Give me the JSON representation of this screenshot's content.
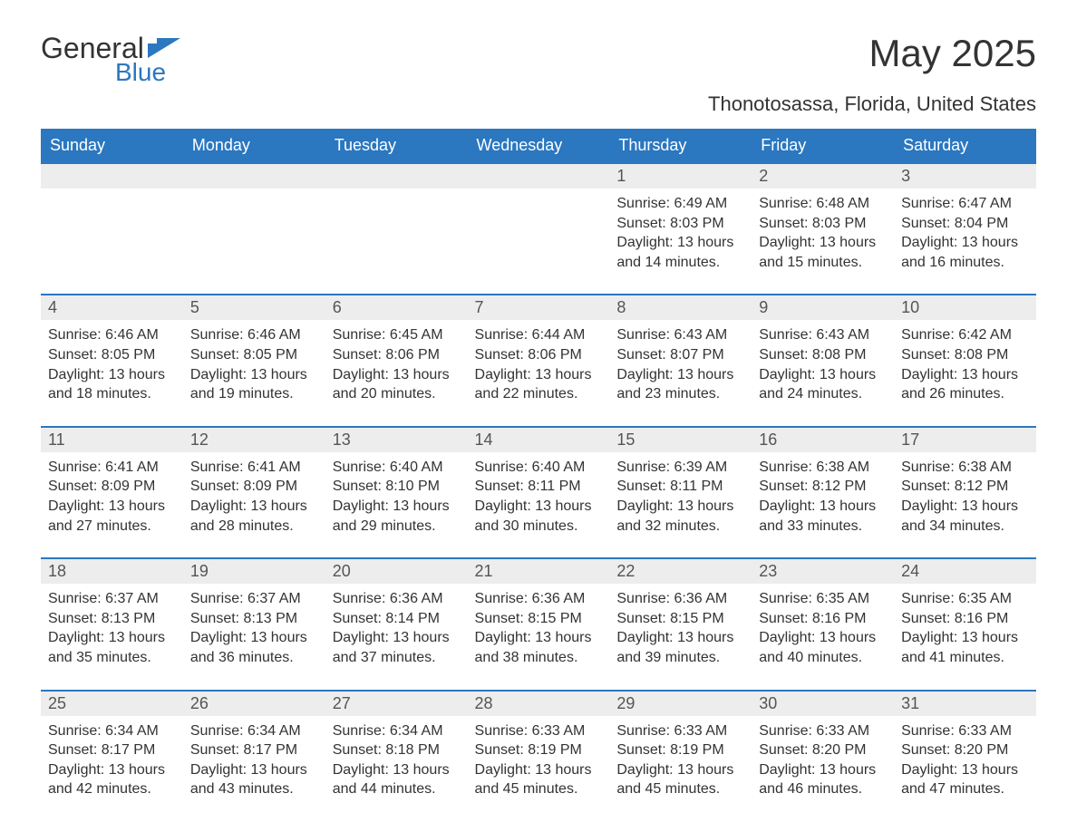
{
  "brand": {
    "name1": "General",
    "name2": "Blue"
  },
  "title": "May 2025",
  "subtitle": "Thonotosassa, Florida, United States",
  "colors": {
    "header_bg": "#2b77c0",
    "header_text": "#ffffff",
    "daynum_bg": "#ededed",
    "daynum_text": "#555555",
    "body_text": "#333333",
    "row_divider": "#2b77c0",
    "page_bg": "#ffffff",
    "logo_icon": "#2b77c0"
  },
  "typography": {
    "title_fontsize": 42,
    "subtitle_fontsize": 22,
    "header_fontsize": 18,
    "daynum_fontsize": 18,
    "body_fontsize": 16,
    "logo_fontsize": 32
  },
  "layout": {
    "columns": 7,
    "rows": 5,
    "leading_blanks": 4
  },
  "weekday_labels": [
    "Sunday",
    "Monday",
    "Tuesday",
    "Wednesday",
    "Thursday",
    "Friday",
    "Saturday"
  ],
  "days": [
    {
      "n": "1",
      "sunrise": "Sunrise: 6:49 AM",
      "sunset": "Sunset: 8:03 PM",
      "dl1": "Daylight: 13 hours",
      "dl2": "and 14 minutes."
    },
    {
      "n": "2",
      "sunrise": "Sunrise: 6:48 AM",
      "sunset": "Sunset: 8:03 PM",
      "dl1": "Daylight: 13 hours",
      "dl2": "and 15 minutes."
    },
    {
      "n": "3",
      "sunrise": "Sunrise: 6:47 AM",
      "sunset": "Sunset: 8:04 PM",
      "dl1": "Daylight: 13 hours",
      "dl2": "and 16 minutes."
    },
    {
      "n": "4",
      "sunrise": "Sunrise: 6:46 AM",
      "sunset": "Sunset: 8:05 PM",
      "dl1": "Daylight: 13 hours",
      "dl2": "and 18 minutes."
    },
    {
      "n": "5",
      "sunrise": "Sunrise: 6:46 AM",
      "sunset": "Sunset: 8:05 PM",
      "dl1": "Daylight: 13 hours",
      "dl2": "and 19 minutes."
    },
    {
      "n": "6",
      "sunrise": "Sunrise: 6:45 AM",
      "sunset": "Sunset: 8:06 PM",
      "dl1": "Daylight: 13 hours",
      "dl2": "and 20 minutes."
    },
    {
      "n": "7",
      "sunrise": "Sunrise: 6:44 AM",
      "sunset": "Sunset: 8:06 PM",
      "dl1": "Daylight: 13 hours",
      "dl2": "and 22 minutes."
    },
    {
      "n": "8",
      "sunrise": "Sunrise: 6:43 AM",
      "sunset": "Sunset: 8:07 PM",
      "dl1": "Daylight: 13 hours",
      "dl2": "and 23 minutes."
    },
    {
      "n": "9",
      "sunrise": "Sunrise: 6:43 AM",
      "sunset": "Sunset: 8:08 PM",
      "dl1": "Daylight: 13 hours",
      "dl2": "and 24 minutes."
    },
    {
      "n": "10",
      "sunrise": "Sunrise: 6:42 AM",
      "sunset": "Sunset: 8:08 PM",
      "dl1": "Daylight: 13 hours",
      "dl2": "and 26 minutes."
    },
    {
      "n": "11",
      "sunrise": "Sunrise: 6:41 AM",
      "sunset": "Sunset: 8:09 PM",
      "dl1": "Daylight: 13 hours",
      "dl2": "and 27 minutes."
    },
    {
      "n": "12",
      "sunrise": "Sunrise: 6:41 AM",
      "sunset": "Sunset: 8:09 PM",
      "dl1": "Daylight: 13 hours",
      "dl2": "and 28 minutes."
    },
    {
      "n": "13",
      "sunrise": "Sunrise: 6:40 AM",
      "sunset": "Sunset: 8:10 PM",
      "dl1": "Daylight: 13 hours",
      "dl2": "and 29 minutes."
    },
    {
      "n": "14",
      "sunrise": "Sunrise: 6:40 AM",
      "sunset": "Sunset: 8:11 PM",
      "dl1": "Daylight: 13 hours",
      "dl2": "and 30 minutes."
    },
    {
      "n": "15",
      "sunrise": "Sunrise: 6:39 AM",
      "sunset": "Sunset: 8:11 PM",
      "dl1": "Daylight: 13 hours",
      "dl2": "and 32 minutes."
    },
    {
      "n": "16",
      "sunrise": "Sunrise: 6:38 AM",
      "sunset": "Sunset: 8:12 PM",
      "dl1": "Daylight: 13 hours",
      "dl2": "and 33 minutes."
    },
    {
      "n": "17",
      "sunrise": "Sunrise: 6:38 AM",
      "sunset": "Sunset: 8:12 PM",
      "dl1": "Daylight: 13 hours",
      "dl2": "and 34 minutes."
    },
    {
      "n": "18",
      "sunrise": "Sunrise: 6:37 AM",
      "sunset": "Sunset: 8:13 PM",
      "dl1": "Daylight: 13 hours",
      "dl2": "and 35 minutes."
    },
    {
      "n": "19",
      "sunrise": "Sunrise: 6:37 AM",
      "sunset": "Sunset: 8:13 PM",
      "dl1": "Daylight: 13 hours",
      "dl2": "and 36 minutes."
    },
    {
      "n": "20",
      "sunrise": "Sunrise: 6:36 AM",
      "sunset": "Sunset: 8:14 PM",
      "dl1": "Daylight: 13 hours",
      "dl2": "and 37 minutes."
    },
    {
      "n": "21",
      "sunrise": "Sunrise: 6:36 AM",
      "sunset": "Sunset: 8:15 PM",
      "dl1": "Daylight: 13 hours",
      "dl2": "and 38 minutes."
    },
    {
      "n": "22",
      "sunrise": "Sunrise: 6:36 AM",
      "sunset": "Sunset: 8:15 PM",
      "dl1": "Daylight: 13 hours",
      "dl2": "and 39 minutes."
    },
    {
      "n": "23",
      "sunrise": "Sunrise: 6:35 AM",
      "sunset": "Sunset: 8:16 PM",
      "dl1": "Daylight: 13 hours",
      "dl2": "and 40 minutes."
    },
    {
      "n": "24",
      "sunrise": "Sunrise: 6:35 AM",
      "sunset": "Sunset: 8:16 PM",
      "dl1": "Daylight: 13 hours",
      "dl2": "and 41 minutes."
    },
    {
      "n": "25",
      "sunrise": "Sunrise: 6:34 AM",
      "sunset": "Sunset: 8:17 PM",
      "dl1": "Daylight: 13 hours",
      "dl2": "and 42 minutes."
    },
    {
      "n": "26",
      "sunrise": "Sunrise: 6:34 AM",
      "sunset": "Sunset: 8:17 PM",
      "dl1": "Daylight: 13 hours",
      "dl2": "and 43 minutes."
    },
    {
      "n": "27",
      "sunrise": "Sunrise: 6:34 AM",
      "sunset": "Sunset: 8:18 PM",
      "dl1": "Daylight: 13 hours",
      "dl2": "and 44 minutes."
    },
    {
      "n": "28",
      "sunrise": "Sunrise: 6:33 AM",
      "sunset": "Sunset: 8:19 PM",
      "dl1": "Daylight: 13 hours",
      "dl2": "and 45 minutes."
    },
    {
      "n": "29",
      "sunrise": "Sunrise: 6:33 AM",
      "sunset": "Sunset: 8:19 PM",
      "dl1": "Daylight: 13 hours",
      "dl2": "and 45 minutes."
    },
    {
      "n": "30",
      "sunrise": "Sunrise: 6:33 AM",
      "sunset": "Sunset: 8:20 PM",
      "dl1": "Daylight: 13 hours",
      "dl2": "and 46 minutes."
    },
    {
      "n": "31",
      "sunrise": "Sunrise: 6:33 AM",
      "sunset": "Sunset: 8:20 PM",
      "dl1": "Daylight: 13 hours",
      "dl2": "and 47 minutes."
    }
  ]
}
